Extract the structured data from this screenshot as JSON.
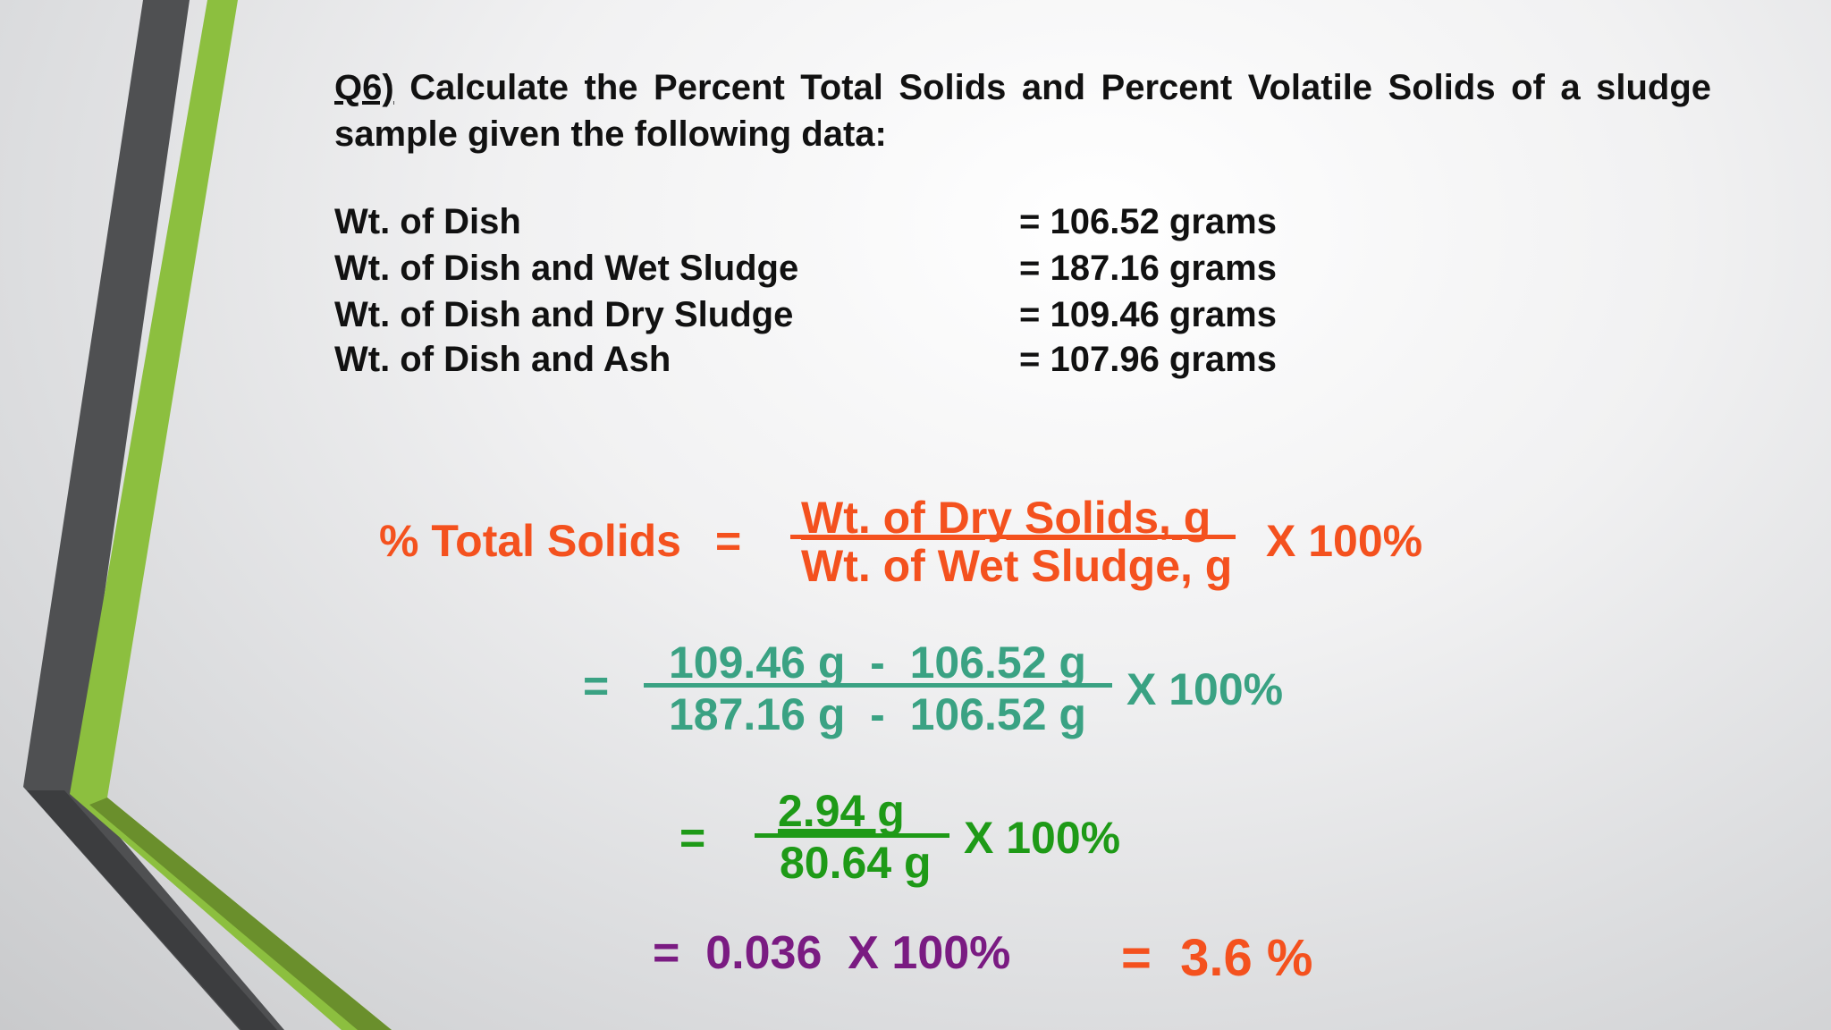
{
  "question": {
    "label": "Q6)",
    "text": "Calculate the Percent Total Solids and Percent Volatile Solids of a sludge sample given the following data:"
  },
  "data_rows": [
    {
      "label": "Wt. of Dish",
      "value": "= 106.52 grams"
    },
    {
      "label": "Wt. of Dish and Wet Sludge",
      "value": "= 187.16 grams"
    },
    {
      "label": "Wt. of Dish and Dry Sludge",
      "value": "= 109.46 grams"
    },
    {
      "label": "Wt. of Dish and Ash",
      "value": "= 107.96 grams"
    }
  ],
  "formula": {
    "lhs": "% Total Solids",
    "equals": "=",
    "numerator": "Wt. of Dry Solids, g",
    "denominator": "Wt. of Wet Sludge, g",
    "multiplier": "X 100%"
  },
  "step1": {
    "equals": "=",
    "numerator": "109.46 g  -  106.52 g",
    "denominator": "187.16 g  -  106.52 g",
    "multiplier": "X 100%"
  },
  "step2": {
    "equals": "=",
    "numerator": "2.94 g",
    "denominator": "80.64 g",
    "multiplier": "X 100%"
  },
  "step3": {
    "expression": "=  0.036  X 100%",
    "result": "=  3.6 %"
  },
  "colors": {
    "formula": "#f4511e",
    "step1": "#3aa283",
    "step2": "#1e9a17",
    "step3": "#7a1b82",
    "accent_green": "#8cbf3f",
    "accent_gray": "#4f5052"
  }
}
